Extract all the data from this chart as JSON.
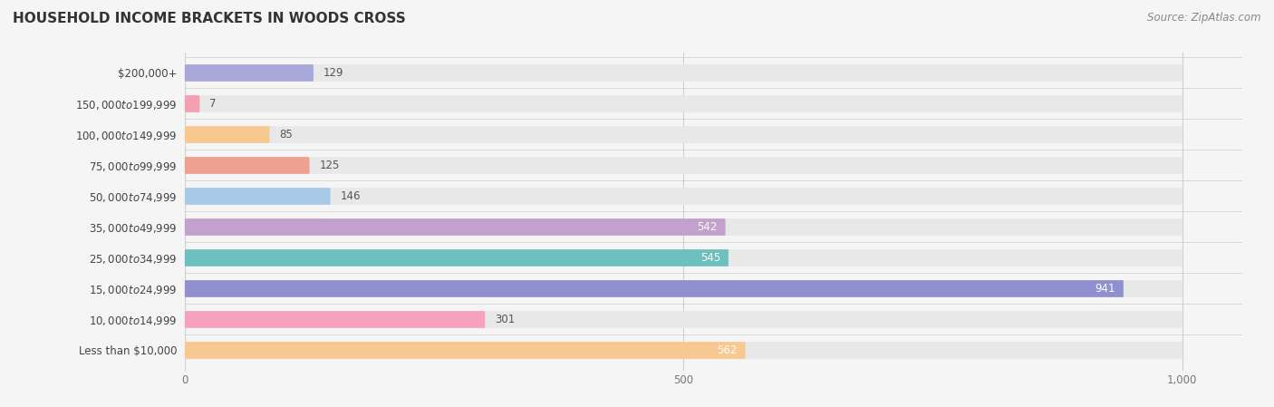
{
  "title": "HOUSEHOLD INCOME BRACKETS IN WOODS CROSS",
  "source": "Source: ZipAtlas.com",
  "categories": [
    "Less than $10,000",
    "$10,000 to $14,999",
    "$15,000 to $24,999",
    "$25,000 to $34,999",
    "$35,000 to $49,999",
    "$50,000 to $74,999",
    "$75,000 to $99,999",
    "$100,000 to $149,999",
    "$150,000 to $199,999",
    "$200,000+"
  ],
  "values": [
    129,
    7,
    85,
    125,
    146,
    542,
    545,
    941,
    301,
    562
  ],
  "bar_colors": [
    "#a8a8d8",
    "#f4a0b0",
    "#f7c890",
    "#f0a090",
    "#a8c8e8",
    "#c4a0cc",
    "#6ec0be",
    "#9090d0",
    "#f8a0c0",
    "#f8c890"
  ],
  "xlim_max": 1000,
  "xticks": [
    0,
    500,
    1000
  ],
  "xtick_labels": [
    "0",
    "500",
    "1,000"
  ],
  "background_color": "#f5f5f5",
  "bar_bg_color": "#e8e8e8",
  "title_fontsize": 11,
  "label_fontsize": 8.5,
  "value_fontsize": 8.5,
  "source_fontsize": 8.5,
  "title_color": "#333333",
  "label_color": "#444444",
  "value_color": "#555555",
  "source_color": "#888888",
  "grid_color": "#d0d0d0",
  "value_inside_color": "#ffffff"
}
